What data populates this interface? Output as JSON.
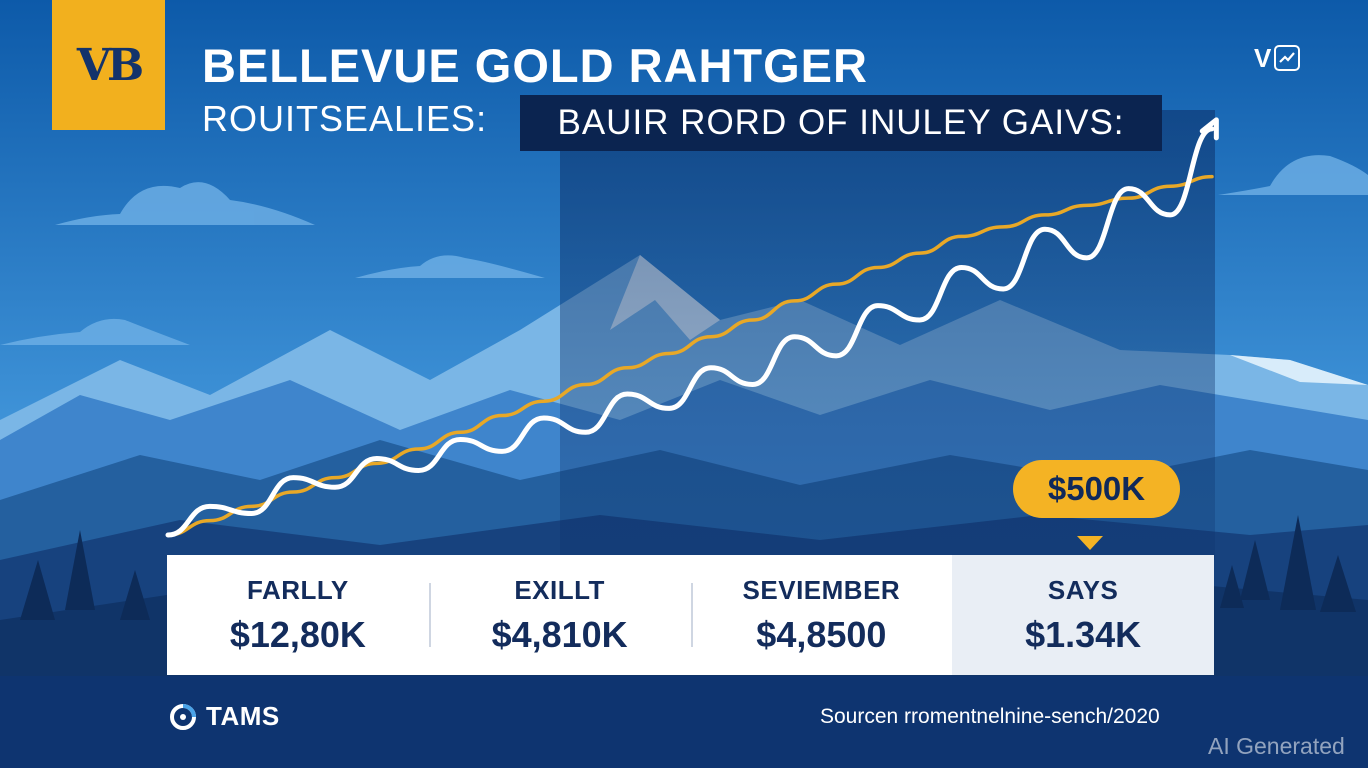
{
  "header": {
    "logo_text": "VB",
    "title": "BELLEVUE GOLD RAHTGER",
    "subtitle": "ROUITSEALIES:",
    "banner": "BAUIR RORD OF INULEY GAIVS:",
    "corner_badge": "V"
  },
  "colors": {
    "sky_top": "#0e5fb0",
    "sky_bottom": "#3d8fd6",
    "accent_gold": "#f4b324",
    "navy": "#132c5c",
    "price_line": "#ffffff",
    "trend_line": "#e8a827"
  },
  "chart_data": {
    "type": "line",
    "series": [
      {
        "values": [
          0.0,
          1.2,
          0.9,
          2.4,
          2.0,
          3.2,
          2.7,
          4.0,
          3.5,
          4.9,
          4.3,
          5.9,
          5.3,
          7.0,
          6.3,
          8.3,
          7.5,
          9.6,
          9.0,
          11.2,
          10.3,
          12.8,
          11.6,
          14.5,
          13.4,
          17.0
        ]
      },
      {
        "values": [
          0.0,
          0.6,
          1.2,
          1.8,
          2.4,
          3.0,
          3.6,
          4.3,
          5.0,
          5.6,
          6.3,
          7.0,
          7.6,
          8.3,
          9.0,
          9.8,
          10.5,
          11.2,
          11.8,
          12.5,
          12.9,
          13.4,
          13.8,
          14.1,
          14.6,
          15.0
        ]
      }
    ],
    "ylim": [
      0,
      18
    ],
    "grid": false,
    "arrow_at_end": true,
    "callout": "$500K"
  },
  "stats": [
    {
      "label": "FARLLY",
      "value": "$12,80K"
    },
    {
      "label": "EXILLT",
      "value": "$4,810K"
    },
    {
      "label": "SEVIEMBER",
      "value": "$4,8500"
    },
    {
      "label": "SAYS",
      "value": "$1.34K"
    }
  ],
  "footer": {
    "brand": "TAMS",
    "source": "Sourcen rromentnelnine-sench/2020",
    "watermark": "AI Generated"
  }
}
